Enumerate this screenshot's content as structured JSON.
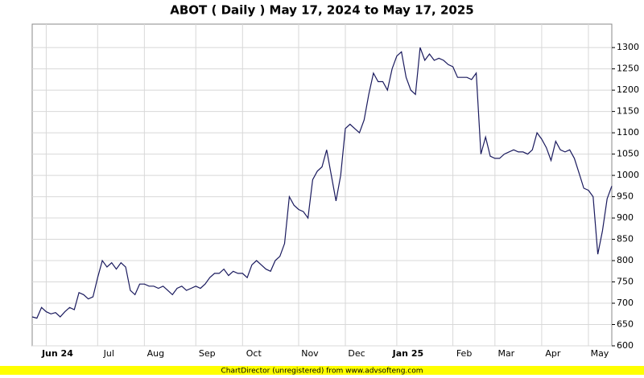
{
  "chart_data": {
    "type": "line",
    "title": "ABOT ( Daily ) May 17, 2024 to May 17, 2025",
    "categories": [
      null,
      null,
      null,
      "Jun 24",
      null,
      null,
      null,
      null,
      null,
      null,
      null,
      null,
      null,
      null,
      "Jul",
      null,
      null,
      null,
      null,
      null,
      null,
      null,
      null,
      null,
      "Aug",
      null,
      null,
      null,
      null,
      null,
      null,
      null,
      null,
      null,
      null,
      "Sep",
      null,
      null,
      null,
      null,
      null,
      null,
      null,
      null,
      null,
      "Oct",
      null,
      null,
      null,
      null,
      null,
      null,
      null,
      null,
      null,
      null,
      null,
      "Nov",
      null,
      null,
      null,
      null,
      null,
      null,
      null,
      null,
      null,
      "Dec",
      null,
      null,
      null,
      null,
      null,
      null,
      null,
      null,
      null,
      null,
      "Jan 25",
      null,
      null,
      null,
      null,
      null,
      null,
      null,
      null,
      null,
      null,
      null,
      "Feb",
      null,
      null,
      null,
      null,
      null,
      null,
      null,
      null,
      "Mar",
      null,
      null,
      null,
      null,
      null,
      null,
      null,
      null,
      null,
      "Apr",
      null,
      null,
      null,
      null,
      null,
      null,
      null,
      null,
      null,
      "May",
      null,
      null,
      null,
      null,
      null
    ],
    "values": [
      668,
      665,
      690,
      680,
      675,
      678,
      668,
      680,
      690,
      685,
      725,
      720,
      710,
      715,
      760,
      800,
      785,
      795,
      780,
      795,
      785,
      730,
      720,
      745,
      745,
      740,
      740,
      735,
      740,
      730,
      720,
      735,
      740,
      730,
      735,
      740,
      735,
      745,
      760,
      770,
      770,
      780,
      765,
      775,
      770,
      770,
      760,
      790,
      800,
      790,
      780,
      775,
      800,
      810,
      840,
      950,
      930,
      920,
      915,
      900,
      990,
      1010,
      1020,
      1060,
      1000,
      940,
      1000,
      1110,
      1120,
      1110,
      1100,
      1130,
      1190,
      1240,
      1220,
      1220,
      1200,
      1250,
      1280,
      1290,
      1230,
      1200,
      1190,
      1300,
      1270,
      1285,
      1270,
      1275,
      1270,
      1260,
      1255,
      1230,
      1230,
      1230,
      1225,
      1240,
      1050,
      1090,
      1045,
      1040,
      1040,
      1050,
      1055,
      1060,
      1055,
      1055,
      1050,
      1060,
      1100,
      1085,
      1065,
      1035,
      1080,
      1060,
      1055,
      1060,
      1040,
      1005,
      970,
      965,
      950,
      815,
      870,
      945,
      975
    ],
    "color": "#1a1a5e",
    "ylim": [
      600,
      1355
    ],
    "yticks": [
      600,
      650,
      700,
      750,
      800,
      850,
      900,
      950,
      1000,
      1050,
      1100,
      1150,
      1200,
      1250,
      1300
    ],
    "grid": true
  },
  "footer": "ChartDirector (unregistered) from www.advsofteng.com"
}
